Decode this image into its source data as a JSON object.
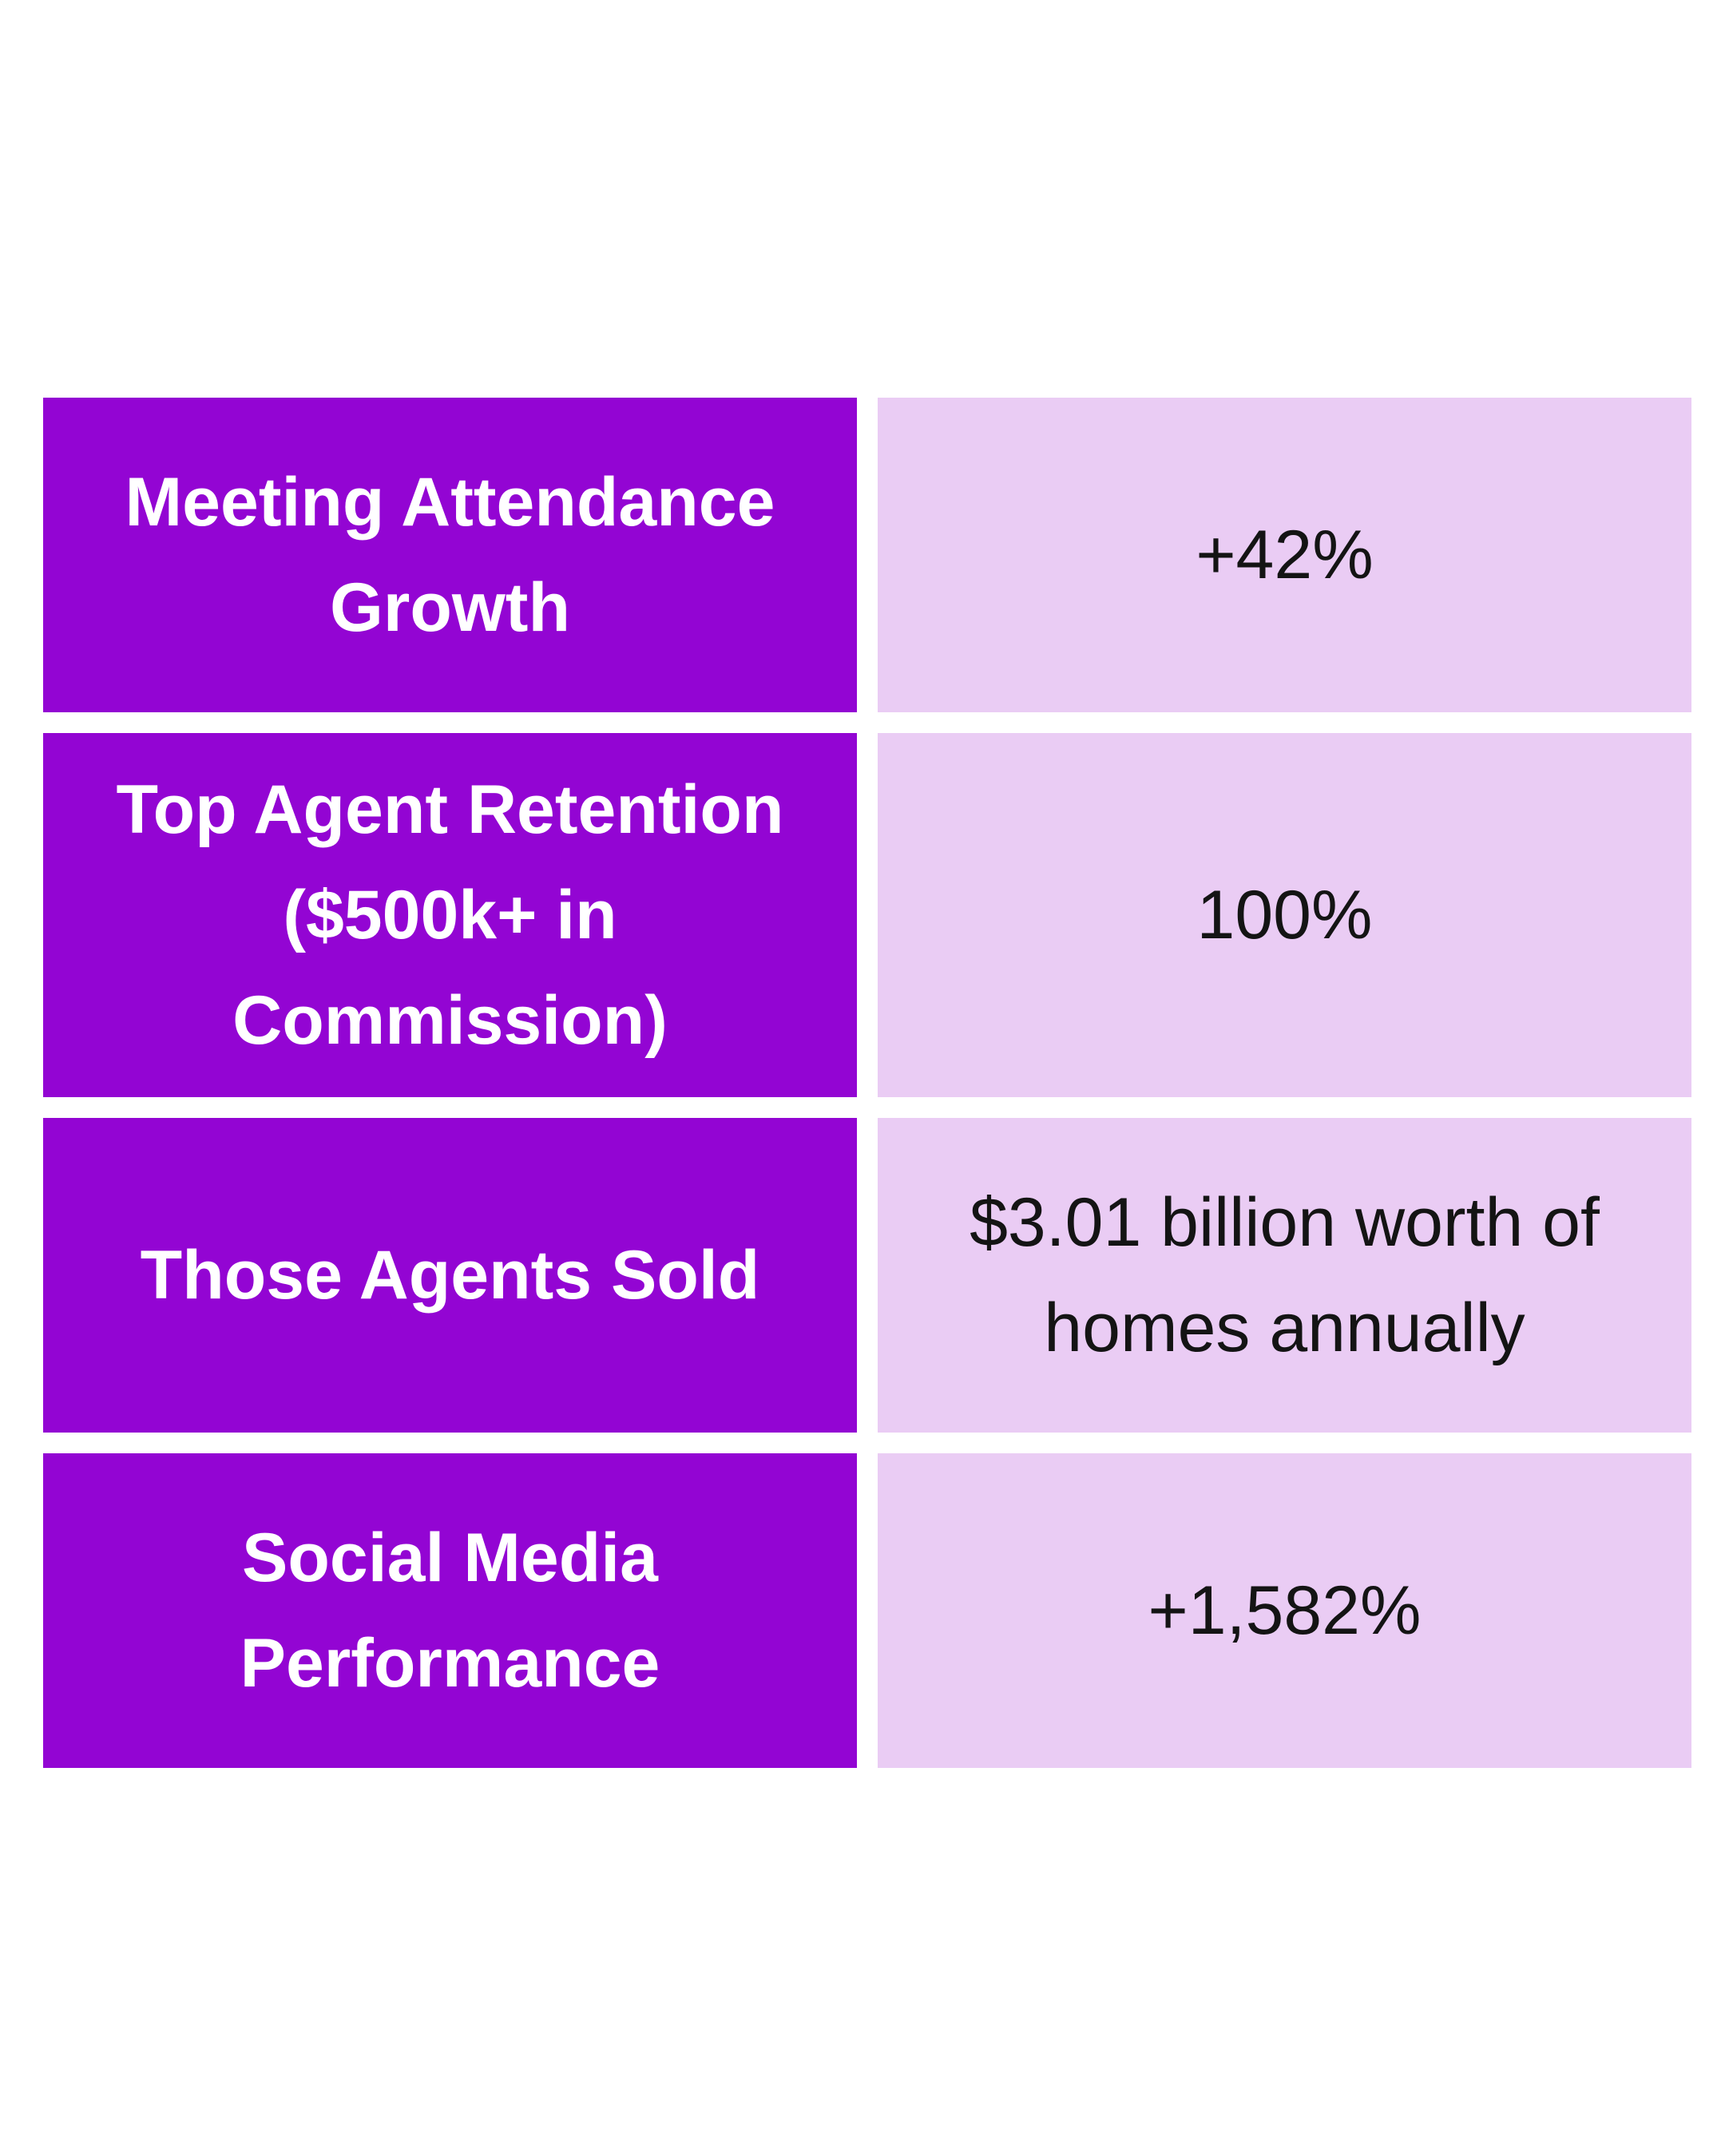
{
  "table": {
    "rows": [
      {
        "label": "Meeting Attendance Growth",
        "value": "+42%"
      },
      {
        "label": "Top Agent Retention ($500k+ in Commission)",
        "value": "100%"
      },
      {
        "label": "Those Agents Sold",
        "value": "$3.01 billion worth of homes annually"
      },
      {
        "label": "Social Media Performance",
        "value": "+1,582%"
      }
    ]
  },
  "colors": {
    "label_bg": "#9305d3",
    "value_bg": "#eaccf4",
    "label_text": "#ffffff",
    "value_text": "#141414"
  }
}
